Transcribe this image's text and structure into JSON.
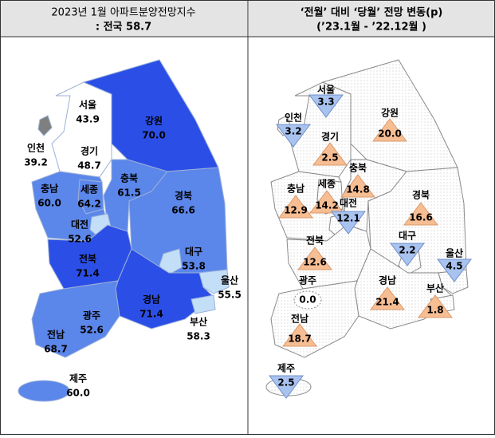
{
  "left": {
    "title_line1": "2023년 1월 아파트분양전망지수",
    "title_line2": ": 전국 58.7",
    "regions": [
      {
        "name": "서울",
        "value": "43.9",
        "color": "#ffffff"
      },
      {
        "name": "인천",
        "value": "39.2",
        "color": "#7f7f7f"
      },
      {
        "name": "경기",
        "value": "48.7",
        "color": "#ffffff"
      },
      {
        "name": "강원",
        "value": "70.0",
        "color": "#2b4fe6"
      },
      {
        "name": "충북",
        "value": "61.5",
        "color": "#5b86ea"
      },
      {
        "name": "세종",
        "value": "64.2",
        "color": "#5b86ea"
      },
      {
        "name": "충남",
        "value": "60.0",
        "color": "#5b86ea"
      },
      {
        "name": "대전",
        "value": "52.6",
        "color": "#c3def7"
      },
      {
        "name": "경북",
        "value": "66.6",
        "color": "#5b86ea"
      },
      {
        "name": "대구",
        "value": "53.8",
        "color": "#c3def7"
      },
      {
        "name": "전북",
        "value": "71.4",
        "color": "#2b4fe6"
      },
      {
        "name": "울산",
        "value": "55.5",
        "color": "#c3def7"
      },
      {
        "name": "경남",
        "value": "71.4",
        "color": "#2b4fe6"
      },
      {
        "name": "부산",
        "value": "58.3",
        "color": "#c3def7"
      },
      {
        "name": "광주",
        "value": "52.6",
        "color": "#c3def7"
      },
      {
        "name": "전남",
        "value": "68.7",
        "color": "#5b86ea"
      },
      {
        "name": "제주",
        "value": "60.0",
        "color": "#5b86ea"
      }
    ]
  },
  "right": {
    "title_line1": "‘전월’ 대비 ‘당월’ 전망 변동(p)",
    "title_line2": "(’23.1월 - ’22.12월 )",
    "up_color": "#f7bd93",
    "down_color": "#a9c3f0",
    "regions": [
      {
        "name": "서울",
        "value": "3.3",
        "direction": "down"
      },
      {
        "name": "인천",
        "value": "3.2",
        "direction": "down"
      },
      {
        "name": "경기",
        "value": "2.5",
        "direction": "up"
      },
      {
        "name": "강원",
        "value": "20.0",
        "direction": "up"
      },
      {
        "name": "충북",
        "value": "14.8",
        "direction": "up"
      },
      {
        "name": "세종",
        "value": "14.2",
        "direction": "up"
      },
      {
        "name": "충남",
        "value": "12.9",
        "direction": "up"
      },
      {
        "name": "대전",
        "value": "12.1",
        "direction": "down"
      },
      {
        "name": "경북",
        "value": "16.6",
        "direction": "up"
      },
      {
        "name": "대구",
        "value": "2.2",
        "direction": "down"
      },
      {
        "name": "전북",
        "value": "12.6",
        "direction": "up"
      },
      {
        "name": "울산",
        "value": "4.5",
        "direction": "down"
      },
      {
        "name": "경남",
        "value": "21.4",
        "direction": "up"
      },
      {
        "name": "부산",
        "value": "1.8",
        "direction": "up"
      },
      {
        "name": "광주",
        "value": "0.0",
        "direction": "none"
      },
      {
        "name": "전남",
        "value": "18.7",
        "direction": "up"
      },
      {
        "name": "제주",
        "value": "2.5",
        "direction": "down"
      }
    ]
  }
}
